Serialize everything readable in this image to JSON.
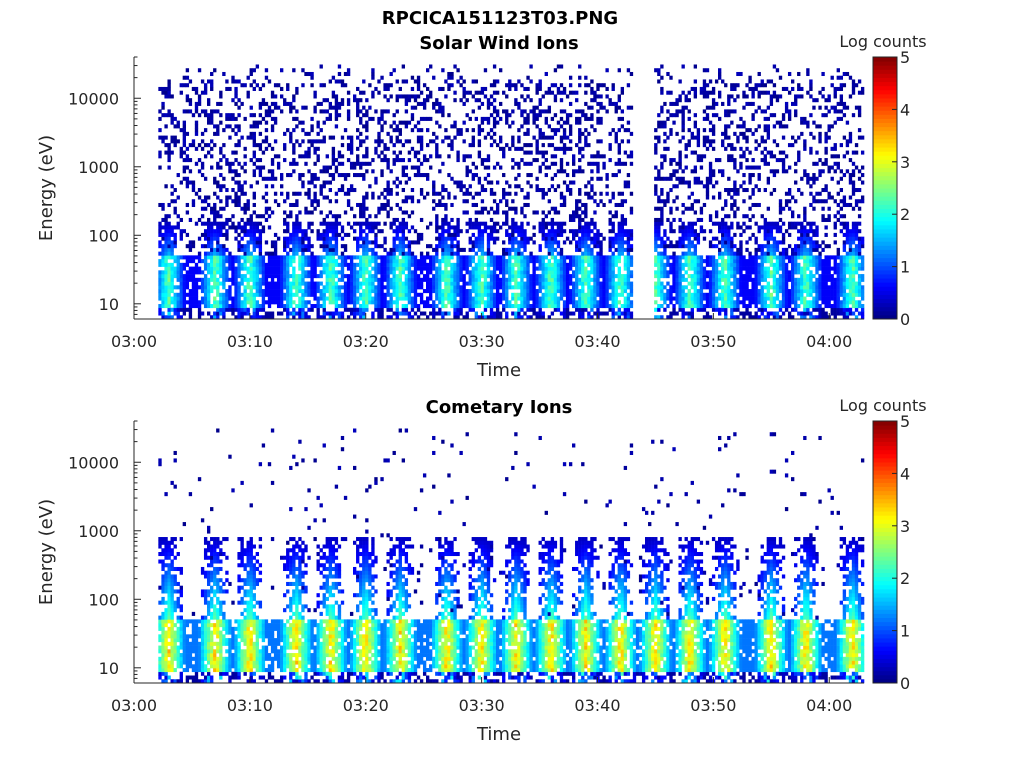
{
  "figure_title": "RPCICA151123T03.PNG",
  "chart_data": [
    {
      "type": "heatmap",
      "title": "Solar Wind Ions",
      "xlabel": "Time",
      "ylabel": "Energy (eV)",
      "x_ticks": [
        "03:00",
        "03:10",
        "03:20",
        "03:30",
        "03:40",
        "03:50",
        "04:00"
      ],
      "x_range": [
        "03:00",
        "04:03"
      ],
      "y_scale": "log",
      "y_ticks": [
        "10",
        "100",
        "1000",
        "10000"
      ],
      "y_range": [
        6,
        40000
      ],
      "colorbar": {
        "label": "Log counts",
        "ticks": [
          "0",
          "1",
          "2",
          "3",
          "4",
          "5"
        ],
        "range": [
          0,
          5
        ],
        "colormap": "jet"
      },
      "data_start": "03:02",
      "burst_times": [
        "03:03",
        "03:07",
        "03:10",
        "03:14",
        "03:17",
        "03:20",
        "03:23",
        "03:27",
        "03:30",
        "03:33",
        "03:36",
        "03:39",
        "03:42",
        "03:45",
        "03:48",
        "03:51",
        "03:55",
        "03:58",
        "04:02"
      ],
      "features": {
        "band_energy_range": [
          12,
          45
        ],
        "band_peak_log_counts": 2.6,
        "band_top_energy": 150,
        "background_speckle_max_energy": 30000,
        "data_gap": [
          "03:43",
          "03:45"
        ]
      }
    },
    {
      "type": "heatmap",
      "title": "Cometary Ions",
      "xlabel": "Time",
      "ylabel": "Energy (eV)",
      "x_ticks": [
        "03:00",
        "03:10",
        "03:20",
        "03:30",
        "03:40",
        "03:50",
        "04:00"
      ],
      "x_range": [
        "03:00",
        "04:03"
      ],
      "y_scale": "log",
      "y_ticks": [
        "10",
        "100",
        "1000",
        "10000"
      ],
      "y_range": [
        6,
        40000
      ],
      "colorbar": {
        "label": "Log counts",
        "ticks": [
          "0",
          "1",
          "2",
          "3",
          "4",
          "5"
        ],
        "range": [
          0,
          5
        ],
        "colormap": "jet"
      },
      "data_start": "03:02",
      "burst_times": [
        "03:03",
        "03:07",
        "03:10",
        "03:14",
        "03:17",
        "03:20",
        "03:23",
        "03:27",
        "03:30",
        "03:33",
        "03:36",
        "03:39",
        "03:42",
        "03:45",
        "03:48",
        "03:51",
        "03:55",
        "03:58",
        "04:02"
      ],
      "features": {
        "band_energy_range": [
          12,
          45
        ],
        "band_peak_log_counts": 3.6,
        "spike_top_energy": 800,
        "background_speckle_max_energy": 30000
      }
    }
  ]
}
